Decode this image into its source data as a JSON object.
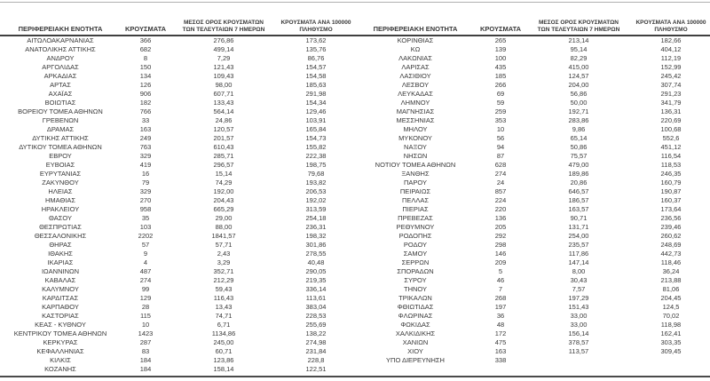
{
  "colors": {
    "background": "#ffffff",
    "text": "#383838",
    "top_rule": "#b0b0b0",
    "header_rule": "#3f3f3f",
    "bottom_rule": "#4a4a4a"
  },
  "headers": {
    "region": "ΠΕΡΙΦΕΡΕΙΑΚΗ ΕΝΟΤΗΤΑ",
    "cases": "ΚΡΟΥΣΜΑΤΑ",
    "avg7_line1": "ΜΕΣΟΣ ΟΡΟΣ ΚΡΟΥΣΜΑΤΩΝ",
    "avg7_line2": "ΤΩΝ ΤΕΛΕΥΤΑΙΩΝ 7 ΗΜΕΡΩΝ",
    "per100k_line1": "ΚΡΟΥΣΜΑΤΑ ΑΝΑ 100000",
    "per100k_line2": "ΠΛΗΘΥΣΜΟ"
  },
  "left_table": {
    "rows": [
      [
        "ΑΙΤΩΛΟΑΚΑΡΝΑΝΙΑΣ",
        "366",
        "276,86",
        "173,62"
      ],
      [
        "ΑΝΑΤΟΛΙΚΗΣ ΑΤΤΙΚΗΣ",
        "682",
        "499,14",
        "135,76"
      ],
      [
        "ΑΝΔΡΟΥ",
        "8",
        "7,29",
        "86,76"
      ],
      [
        "ΑΡΓΟΛΙΔΑΣ",
        "150",
        "121,43",
        "154,57"
      ],
      [
        "ΑΡΚΑΔΙΑΣ",
        "134",
        "109,43",
        "154,58"
      ],
      [
        "ΑΡΤΑΣ",
        "126",
        "98,00",
        "185,63"
      ],
      [
        "ΑΧΑΪΑΣ",
        "906",
        "607,71",
        "291,98"
      ],
      [
        "ΒΟΙΩΤΙΑΣ",
        "182",
        "133,43",
        "154,34"
      ],
      [
        "ΒΟΡΕΙΟΥ ΤΟΜΕΑ ΑΘΗΝΩΝ",
        "766",
        "564,14",
        "129,46"
      ],
      [
        "ΓΡΕΒΕΝΩΝ",
        "33",
        "24,86",
        "103,91"
      ],
      [
        "ΔΡΑΜΑΣ",
        "163",
        "120,57",
        "165,84"
      ],
      [
        "ΔΥΤΙΚΗΣ ΑΤΤΙΚΗΣ",
        "249",
        "201,57",
        "154,73"
      ],
      [
        "ΔΥΤΙΚΟΥ ΤΟΜΕΑ ΑΘΗΝΩΝ",
        "763",
        "610,43",
        "155,82"
      ],
      [
        "ΕΒΡΟΥ",
        "329",
        "285,71",
        "222,38"
      ],
      [
        "ΕΥΒΟΙΑΣ",
        "419",
        "296,57",
        "198,75"
      ],
      [
        "ΕΥΡΥΤΑΝΙΑΣ",
        "16",
        "15,14",
        "79,68"
      ],
      [
        "ΖΑΚΥΝΘΟΥ",
        "79",
        "74,29",
        "193,82"
      ],
      [
        "ΗΛΕΙΑΣ",
        "329",
        "192,00",
        "206,53"
      ],
      [
        "ΗΜΑΘΙΑΣ",
        "270",
        "204,43",
        "192,02"
      ],
      [
        "ΗΡΑΚΛΕΙΟΥ",
        "958",
        "665,29",
        "313,59"
      ],
      [
        "ΘΑΣΟΥ",
        "35",
        "29,00",
        "254,18"
      ],
      [
        "ΘΕΣΠΡΩΤΙΑΣ",
        "103",
        "88,00",
        "236,31"
      ],
      [
        "ΘΕΣΣΑΛΟΝΙΚΗΣ",
        "2202",
        "1841,57",
        "198,32"
      ],
      [
        "ΘΗΡΑΣ",
        "57",
        "57,71",
        "301,86"
      ],
      [
        "ΙΘΑΚΗΣ",
        "9",
        "2,43",
        "278,55"
      ],
      [
        "ΙΚΑΡΙΑΣ",
        "4",
        "3,29",
        "40,48"
      ],
      [
        "ΙΩΑΝΝΙΝΩΝ",
        "487",
        "352,71",
        "290,05"
      ],
      [
        "ΚΑΒΑΛΑΣ",
        "274",
        "212,29",
        "219,35"
      ],
      [
        "ΚΑΛΥΜΝΟΥ",
        "99",
        "59,43",
        "336,14"
      ],
      [
        "ΚΑΡΔΙΤΣΑΣ",
        "129",
        "116,43",
        "113,61"
      ],
      [
        "ΚΑΡΠΑΘΟΥ",
        "28",
        "13,43",
        "383,04"
      ],
      [
        "ΚΑΣΤΟΡΙΑΣ",
        "115",
        "74,71",
        "228,53"
      ],
      [
        "ΚΕΑΣ - ΚΥΘΝΟΥ",
        "10",
        "6,71",
        "255,69"
      ],
      [
        "ΚΕΝΤΡΙΚΟΥ ΤΟΜΕΑ ΑΘΗΝΩΝ",
        "1423",
        "1134,86",
        "138,22"
      ],
      [
        "ΚΕΡΚΥΡΑΣ",
        "287",
        "245,00",
        "274,98"
      ],
      [
        "ΚΕΦΑΛΛΗΝΙΑΣ",
        "83",
        "60,71",
        "231,84"
      ],
      [
        "ΚΙΛΚΙΣ",
        "184",
        "123,86",
        "228,8"
      ],
      [
        "ΚΟΖΑΝΗΣ",
        "184",
        "158,14",
        "122,51"
      ]
    ]
  },
  "right_table": {
    "rows": [
      [
        "ΚΟΡΙΝΘΙΑΣ",
        "265",
        "213,14",
        "182,66"
      ],
      [
        "ΚΩ",
        "139",
        "95,14",
        "404,12"
      ],
      [
        "ΛΑΚΩΝΙΑΣ",
        "100",
        "82,29",
        "112,19"
      ],
      [
        "ΛΑΡΙΣΑΣ",
        "435",
        "415,00",
        "152,99"
      ],
      [
        "ΛΑΣΙΘΙΟΥ",
        "185",
        "124,57",
        "245,42"
      ],
      [
        "ΛΕΣΒΟΥ",
        "266",
        "204,00",
        "307,74"
      ],
      [
        "ΛΕΥΚΑΔΑΣ",
        "69",
        "56,86",
        "291,23"
      ],
      [
        "ΛΗΜΝΟΥ",
        "59",
        "50,00",
        "341,79"
      ],
      [
        "ΜΑΓΝΗΣΙΑΣ",
        "259",
        "192,71",
        "136,31"
      ],
      [
        "ΜΕΣΣΗΝΙΑΣ",
        "353",
        "283,86",
        "220,69"
      ],
      [
        "ΜΗΛΟΥ",
        "10",
        "9,86",
        "100,68"
      ],
      [
        "ΜΥΚΟΝΟΥ",
        "56",
        "65,14",
        "552,6"
      ],
      [
        "ΝΑΞΟΥ",
        "94",
        "50,86",
        "451,12"
      ],
      [
        "ΝΗΣΩΝ",
        "87",
        "75,57",
        "116,54"
      ],
      [
        "ΝΟΤΙΟΥ ΤΟΜΕΑ ΑΘΗΝΩΝ",
        "628",
        "479,00",
        "118,53"
      ],
      [
        "ΞΑΝΘΗΣ",
        "274",
        "189,86",
        "246,35"
      ],
      [
        "ΠΑΡΟΥ",
        "24",
        "20,86",
        "160,79"
      ],
      [
        "ΠΕΙΡΑΙΩΣ",
        "857",
        "646,57",
        "190,87"
      ],
      [
        "ΠΕΛΛΑΣ",
        "224",
        "186,57",
        "160,37"
      ],
      [
        "ΠΙΕΡΙΑΣ",
        "220",
        "163,57",
        "173,64"
      ],
      [
        "ΠΡΕΒΕΖΑΣ",
        "136",
        "90,71",
        "236,56"
      ],
      [
        "ΡΕΘΥΜΝΟΥ",
        "205",
        "131,71",
        "239,46"
      ],
      [
        "ΡΟΔΟΠΗΣ",
        "292",
        "254,00",
        "260,62"
      ],
      [
        "ΡΟΔΟΥ",
        "298",
        "235,57",
        "248,69"
      ],
      [
        "ΣΑΜΟΥ",
        "146",
        "117,86",
        "442,73"
      ],
      [
        "ΣΕΡΡΩΝ",
        "209",
        "147,14",
        "118,46"
      ],
      [
        "ΣΠΟΡΑΔΩΝ",
        "5",
        "8,00",
        "36,24"
      ],
      [
        "ΣΥΡΟΥ",
        "46",
        "30,43",
        "213,88"
      ],
      [
        "ΤΗΝΟΥ",
        "7",
        "7,57",
        "81,06"
      ],
      [
        "ΤΡΙΚΑΛΩΝ",
        "268",
        "197,29",
        "204,45"
      ],
      [
        "ΦΘΙΩΤΙΔΑΣ",
        "197",
        "151,43",
        "124,5"
      ],
      [
        "ΦΛΩΡΙΝΑΣ",
        "36",
        "33,00",
        "70,02"
      ],
      [
        "ΦΩΚΙΔΑΣ",
        "48",
        "33,00",
        "118,98"
      ],
      [
        "ΧΑΛΚΙΔΙΚΗΣ",
        "172",
        "156,14",
        "162,41"
      ],
      [
        "ΧΑΝΙΩΝ",
        "475",
        "378,57",
        "303,35"
      ],
      [
        "ΧΙΟΥ",
        "163",
        "113,57",
        "309,45"
      ],
      [
        "ΥΠΟ ΔΙΕΡΕΥΝΗΣΗ",
        "338",
        "",
        ""
      ]
    ]
  }
}
